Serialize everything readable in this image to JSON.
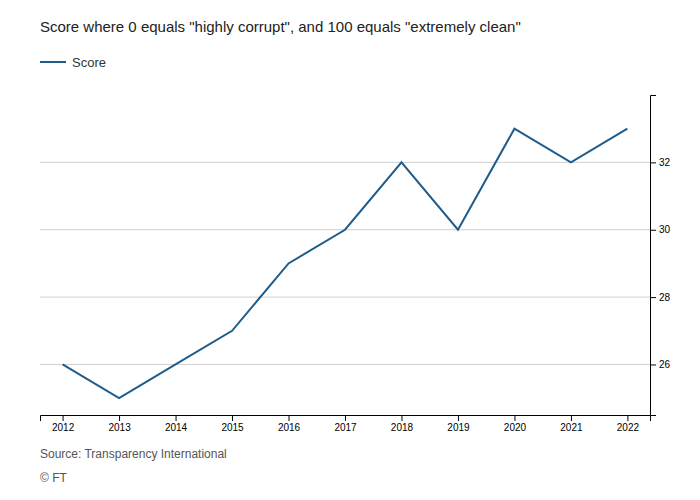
{
  "chart_data": {
    "type": "line",
    "title": "Score where 0 equals \"highly corrupt\", and 100 equals \"extremely clean\"",
    "x": [
      2012,
      2013,
      2014,
      2015,
      2016,
      2017,
      2018,
      2019,
      2020,
      2021,
      2022
    ],
    "series": [
      {
        "name": "Score",
        "color": "#1f5c8b",
        "values": [
          26,
          25,
          26,
          27,
          29,
          30,
          32,
          30,
          33,
          32,
          33
        ]
      }
    ],
    "xlim": [
      2011.6,
      2022.4
    ],
    "xticks": [
      2012,
      2013,
      2014,
      2015,
      2016,
      2017,
      2018,
      2019,
      2020,
      2021,
      2022
    ],
    "ylim": [
      24.5,
      34.0
    ],
    "yticks": [
      26,
      28,
      30,
      32
    ],
    "grid": true,
    "legend": "top-left",
    "annotations": [
      "Source: Transparency International",
      "© FT"
    ]
  }
}
